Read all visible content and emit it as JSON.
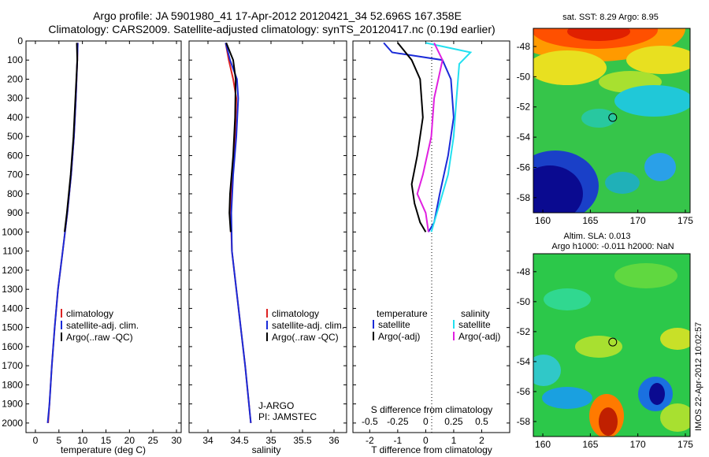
{
  "title_line1": "Argo profile: JA 5901980_41 17-Apr-2012 20120421_34 52.696S 167.358E",
  "title_line2": "Climatology: CARS2009. Satellite-adjusted climatology: synTS_20120417.nc (0.19d earlier)",
  "stamp": "IMOS 22-Apr-2012 10:02:57",
  "colors": {
    "clim": "#dd2222",
    "sat": "#1a2bd8",
    "argo": "#000000",
    "sat_s": "#22e0f0",
    "argo_s": "#e020e0"
  },
  "chart_data": [
    {
      "type": "line",
      "xlabel": "temperature (deg C)",
      "xlim": [
        -2,
        31
      ],
      "xticks": [
        0,
        5,
        10,
        15,
        20,
        25,
        30
      ],
      "ylim": [
        0,
        2050
      ],
      "yticks": [
        0,
        100,
        200,
        300,
        400,
        500,
        600,
        700,
        800,
        900,
        1000,
        1100,
        1200,
        1300,
        1400,
        1500,
        1600,
        1700,
        1800,
        1900,
        2000
      ],
      "legend": [
        "climatology",
        "satellite-adj. clim.",
        "Argo(..raw -QC)"
      ],
      "legend_position": "lower-center",
      "series": [
        {
          "name": "climatology",
          "color_key": "clim",
          "points": [
            [
              9.0,
              10
            ],
            [
              8.9,
              100
            ],
            [
              8.6,
              300
            ],
            [
              8.2,
              500
            ],
            [
              7.6,
              700
            ],
            [
              6.8,
              900
            ],
            [
              5.8,
              1100
            ],
            [
              4.8,
              1300
            ],
            [
              4.1,
              1500
            ],
            [
              3.5,
              1700
            ],
            [
              3.0,
              1900
            ],
            [
              2.7,
              2000
            ]
          ]
        },
        {
          "name": "satellite-adj. clim.",
          "color_key": "sat",
          "points": [
            [
              9.0,
              10
            ],
            [
              8.9,
              100
            ],
            [
              8.6,
              300
            ],
            [
              8.2,
              500
            ],
            [
              7.6,
              700
            ],
            [
              6.8,
              900
            ],
            [
              5.8,
              1100
            ],
            [
              4.8,
              1300
            ],
            [
              4.1,
              1500
            ],
            [
              3.5,
              1700
            ],
            [
              3.0,
              1900
            ],
            [
              2.6,
              2000
            ]
          ]
        },
        {
          "name": "Argo(..raw -QC)",
          "color_key": "argo",
          "points": [
            [
              8.8,
              10
            ],
            [
              8.9,
              100
            ],
            [
              8.5,
              300
            ],
            [
              8.1,
              500
            ],
            [
              7.5,
              700
            ],
            [
              6.7,
              900
            ],
            [
              6.2,
              1000
            ]
          ]
        }
      ]
    },
    {
      "type": "line",
      "xlabel": "salinity",
      "xlim": [
        33.7,
        36.2
      ],
      "xticks": [
        34,
        34.5,
        35,
        35.5,
        36
      ],
      "ylim": [
        0,
        2050
      ],
      "legend": [
        "climatology",
        "satellite-adj. clim.",
        "Argo(..raw -QC)"
      ],
      "legend_position": "lower-right",
      "annotation": [
        "J-ARGO",
        "PI: JAMSTEC"
      ],
      "series": [
        {
          "name": "climatology",
          "color_key": "clim",
          "points": [
            [
              34.28,
              10
            ],
            [
              34.33,
              100
            ],
            [
              34.4,
              200
            ],
            [
              34.45,
              300
            ],
            [
              34.43,
              500
            ],
            [
              34.38,
              700
            ],
            [
              34.36,
              900
            ],
            [
              34.38,
              1100
            ],
            [
              34.45,
              1300
            ],
            [
              34.52,
              1500
            ],
            [
              34.59,
              1700
            ],
            [
              34.65,
              1900
            ],
            [
              34.68,
              2000
            ]
          ]
        },
        {
          "name": "satellite-adj. clim.",
          "color_key": "sat",
          "points": [
            [
              34.28,
              10
            ],
            [
              34.35,
              100
            ],
            [
              34.46,
              200
            ],
            [
              34.48,
              300
            ],
            [
              34.45,
              500
            ],
            [
              34.4,
              700
            ],
            [
              34.37,
              900
            ],
            [
              34.38,
              1100
            ],
            [
              34.45,
              1300
            ],
            [
              34.52,
              1500
            ],
            [
              34.59,
              1700
            ],
            [
              34.65,
              1900
            ],
            [
              34.68,
              2000
            ]
          ]
        },
        {
          "name": "Argo(..raw -QC)",
          "color_key": "argo",
          "points": [
            [
              34.29,
              10
            ],
            [
              34.4,
              100
            ],
            [
              34.44,
              200
            ],
            [
              34.43,
              400
            ],
            [
              34.4,
              600
            ],
            [
              34.35,
              800
            ],
            [
              34.34,
              900
            ],
            [
              34.36,
              1000
            ]
          ]
        }
      ]
    },
    {
      "type": "line",
      "xlabel": "T difference from climatology",
      "x2label": "S difference from climatology",
      "xlim": [
        -2.6,
        3
      ],
      "xticks": [
        -2,
        -1,
        0,
        1,
        2
      ],
      "x2ticks": [
        -0.5,
        -0.25,
        0,
        0.25,
        0.5
      ],
      "ylim": [
        0,
        2050
      ],
      "legend": [
        "temperature",
        "satellite",
        "Argo(-adj)",
        "salinity",
        "satellite",
        "Argo(-adj)"
      ],
      "legend_position": "lower",
      "series": [
        {
          "name": "temperature satellite",
          "color_key": "sat",
          "points": [
            [
              -1.5,
              10
            ],
            [
              -1.2,
              60
            ],
            [
              0.6,
              100
            ],
            [
              0.9,
              200
            ],
            [
              1.0,
              400
            ],
            [
              0.8,
              600
            ],
            [
              0.5,
              800
            ],
            [
              0.3,
              950
            ],
            [
              0.1,
              1000
            ]
          ]
        },
        {
          "name": "temperature Argo(-adj)",
          "color_key": "argo",
          "points": [
            [
              -1.0,
              10
            ],
            [
              -0.5,
              100
            ],
            [
              -0.2,
              200
            ],
            [
              -0.1,
              400
            ],
            [
              -0.3,
              600
            ],
            [
              -0.5,
              750
            ],
            [
              -0.4,
              850
            ],
            [
              -0.2,
              950
            ],
            [
              0.0,
              1000
            ]
          ]
        },
        {
          "name": "salinity satellite",
          "color_key": "sat_s",
          "points": [
            [
              0.0,
              10
            ],
            [
              1.6,
              60
            ],
            [
              1.2,
              120
            ],
            [
              1.1,
              300
            ],
            [
              1.0,
              500
            ],
            [
              0.8,
              700
            ],
            [
              0.5,
              850
            ],
            [
              0.2,
              1000
            ]
          ]
        },
        {
          "name": "salinity Argo(-adj)",
          "color_key": "argo_s",
          "points": [
            [
              0.3,
              10
            ],
            [
              0.6,
              100
            ],
            [
              0.3,
              300
            ],
            [
              0.2,
              500
            ],
            [
              -0.1,
              700
            ],
            [
              -0.3,
              800
            ],
            [
              0.0,
              900
            ],
            [
              0.1,
              1000
            ]
          ]
        }
      ]
    },
    {
      "type": "heatmap",
      "title": "sat. SST: 8.29 Argo: 8.95",
      "xlim": [
        159,
        175.5
      ],
      "ylim": [
        -59,
        -46.8
      ],
      "xticks": [
        160,
        165,
        170,
        175
      ],
      "yticks": [
        -48,
        -50,
        -52,
        -54,
        -56,
        -58
      ],
      "marker": {
        "lon": 167.358,
        "lat": -52.696
      }
    },
    {
      "type": "heatmap",
      "title_line1": "Altim. SLA: 0.013",
      "title_line2": "Argo h1000: -0.011 h2000: NaN",
      "xlim": [
        159,
        175.5
      ],
      "ylim": [
        -59,
        -46.8
      ],
      "xticks": [
        160,
        165,
        170,
        175
      ],
      "yticks": [
        -48,
        -50,
        -52,
        -54,
        -56,
        -58
      ],
      "marker": {
        "lon": 167.358,
        "lat": -52.696
      }
    }
  ]
}
